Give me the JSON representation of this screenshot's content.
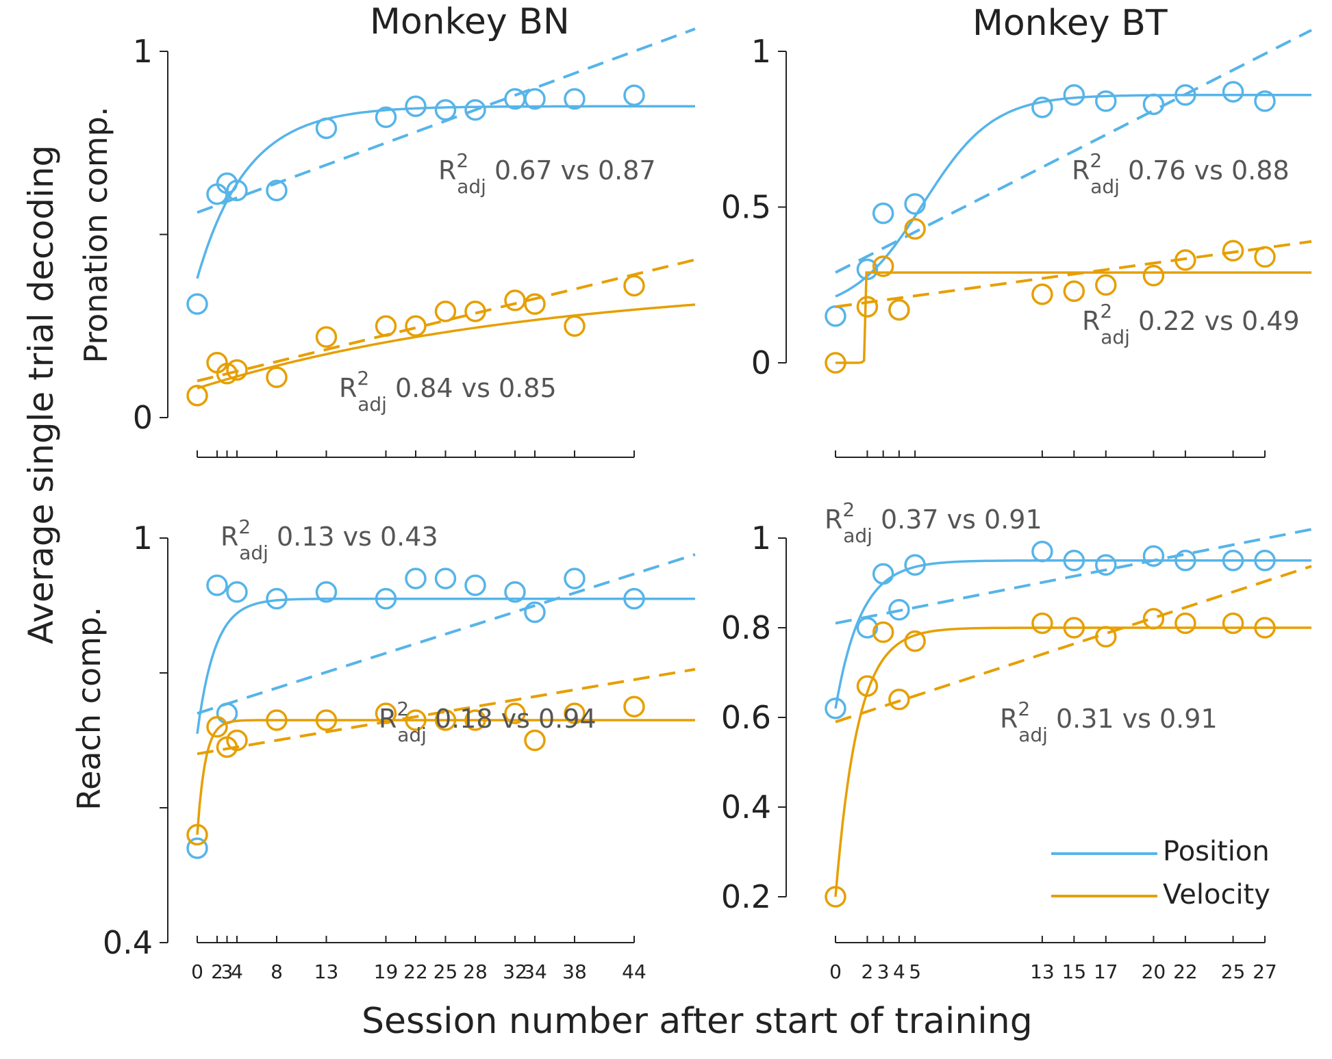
{
  "figure": {
    "xlabel": "Session number after start of training",
    "ylabel": "Average single trial decoding"
  },
  "colors": {
    "position": "#56B4E9",
    "velocity": "#E69F00",
    "text": "#222222",
    "annot": "#555555"
  },
  "legend": {
    "items": [
      "Position",
      "Velocity"
    ]
  },
  "chart_data": [
    {
      "type": "scatter",
      "panel": "top-left",
      "title": "Monkey BN",
      "ylabel": "Pronation comp.",
      "ylim": [
        0,
        1
      ],
      "yticks": [
        "0",
        "1"
      ],
      "xticks": [
        0,
        2,
        3,
        4,
        8,
        13,
        19,
        22,
        25,
        28,
        32,
        34,
        38,
        44
      ],
      "xlim": [
        0,
        44
      ],
      "series": [
        {
          "name": "Position",
          "x": [
            0,
            2,
            3,
            4,
            8,
            13,
            19,
            22,
            25,
            28,
            32,
            34,
            38,
            44
          ],
          "y": [
            0.31,
            0.61,
            0.64,
            0.62,
            0.62,
            0.79,
            0.82,
            0.85,
            0.84,
            0.84,
            0.87,
            0.87,
            0.87,
            0.88
          ]
        },
        {
          "name": "Velocity",
          "x": [
            0,
            2,
            3,
            4,
            8,
            13,
            19,
            22,
            25,
            28,
            32,
            34,
            38,
            44
          ],
          "y": [
            0.06,
            0.15,
            0.12,
            0.13,
            0.11,
            0.22,
            0.25,
            0.25,
            0.29,
            0.29,
            0.32,
            0.31,
            0.25,
            0.36
          ]
        }
      ],
      "annotations": [
        {
          "label": "0.67 vs 0.87",
          "series": "Position"
        },
        {
          "label": "0.84 vs 0.85",
          "series": "Velocity"
        }
      ]
    },
    {
      "type": "scatter",
      "panel": "top-right",
      "title": "Monkey BT",
      "ylabel": "",
      "ylim": [
        0,
        1
      ],
      "yticks": [
        "0",
        "0.5",
        "1"
      ],
      "xticks": [
        0,
        2,
        3,
        4,
        5,
        13,
        15,
        17,
        20,
        22,
        25,
        27
      ],
      "xlim": [
        0,
        27
      ],
      "series": [
        {
          "name": "Position",
          "x": [
            0,
            2,
            3,
            4,
            5,
            13,
            15,
            17,
            20,
            22,
            25,
            27
          ],
          "y": [
            0.15,
            0.3,
            0.48,
            0.17,
            0.51,
            0.82,
            0.86,
            0.84,
            0.83,
            0.86,
            0.87,
            0.84
          ]
        },
        {
          "name": "Velocity",
          "x": [
            0,
            2,
            3,
            4,
            5,
            13,
            15,
            17,
            20,
            22,
            25,
            27
          ],
          "y": [
            0.0,
            0.18,
            0.31,
            0.17,
            0.43,
            0.22,
            0.23,
            0.25,
            0.28,
            0.33,
            0.36,
            0.34
          ]
        }
      ],
      "annotations": [
        {
          "label": "0.76 vs 0.88",
          "series": "Position"
        },
        {
          "label": "0.22 vs 0.49",
          "series": "Velocity"
        }
      ]
    },
    {
      "type": "scatter",
      "panel": "bottom-left",
      "title": "",
      "ylabel": "Reach comp.",
      "ylim": [
        0.4,
        1
      ],
      "yticks": [
        "0.4",
        "1"
      ],
      "xticks": [
        0,
        2,
        3,
        4,
        8,
        13,
        19,
        22,
        25,
        28,
        32,
        34,
        38,
        44
      ],
      "xlim": [
        0,
        44
      ],
      "series": [
        {
          "name": "Position",
          "x": [
            0,
            2,
            3,
            4,
            8,
            13,
            19,
            22,
            25,
            28,
            32,
            34,
            38,
            44
          ],
          "y": [
            0.54,
            0.93,
            0.74,
            0.92,
            0.91,
            0.92,
            0.91,
            0.94,
            0.94,
            0.93,
            0.92,
            0.89,
            0.94,
            0.91
          ]
        },
        {
          "name": "Velocity",
          "x": [
            0,
            2,
            3,
            4,
            8,
            13,
            19,
            22,
            25,
            28,
            32,
            34,
            38,
            44
          ],
          "y": [
            0.56,
            0.72,
            0.69,
            0.7,
            0.73,
            0.73,
            0.74,
            0.73,
            0.73,
            0.73,
            0.74,
            0.7,
            0.74,
            0.75
          ]
        }
      ],
      "annotations": [
        {
          "label": "0.13 vs 0.43",
          "series": "Position"
        },
        {
          "label": "0.18 vs 0.94",
          "series": "Velocity"
        }
      ]
    },
    {
      "type": "scatter",
      "panel": "bottom-right",
      "title": "",
      "ylabel": "",
      "ylim": [
        0.2,
        1
      ],
      "yticks": [
        "0.2",
        "0.4",
        "0.6",
        "0.8",
        "1"
      ],
      "xticks": [
        0,
        2,
        3,
        4,
        5,
        13,
        15,
        17,
        20,
        22,
        25,
        27
      ],
      "xlim": [
        0,
        27
      ],
      "series": [
        {
          "name": "Position",
          "x": [
            0,
            2,
            3,
            4,
            5,
            13,
            15,
            17,
            20,
            22,
            25,
            27
          ],
          "y": [
            0.62,
            0.8,
            0.92,
            0.84,
            0.94,
            0.97,
            0.95,
            0.94,
            0.96,
            0.95,
            0.95,
            0.95
          ]
        },
        {
          "name": "Velocity",
          "x": [
            0,
            2,
            3,
            4,
            5,
            13,
            15,
            17,
            20,
            22,
            25,
            27
          ],
          "y": [
            0.2,
            0.67,
            0.79,
            0.64,
            0.77,
            0.81,
            0.8,
            0.78,
            0.82,
            0.81,
            0.81,
            0.8
          ]
        }
      ],
      "annotations": [
        {
          "label": "0.37 vs 0.91",
          "series": "Position"
        },
        {
          "label": "0.31 vs 0.91",
          "series": "Velocity"
        }
      ]
    }
  ]
}
